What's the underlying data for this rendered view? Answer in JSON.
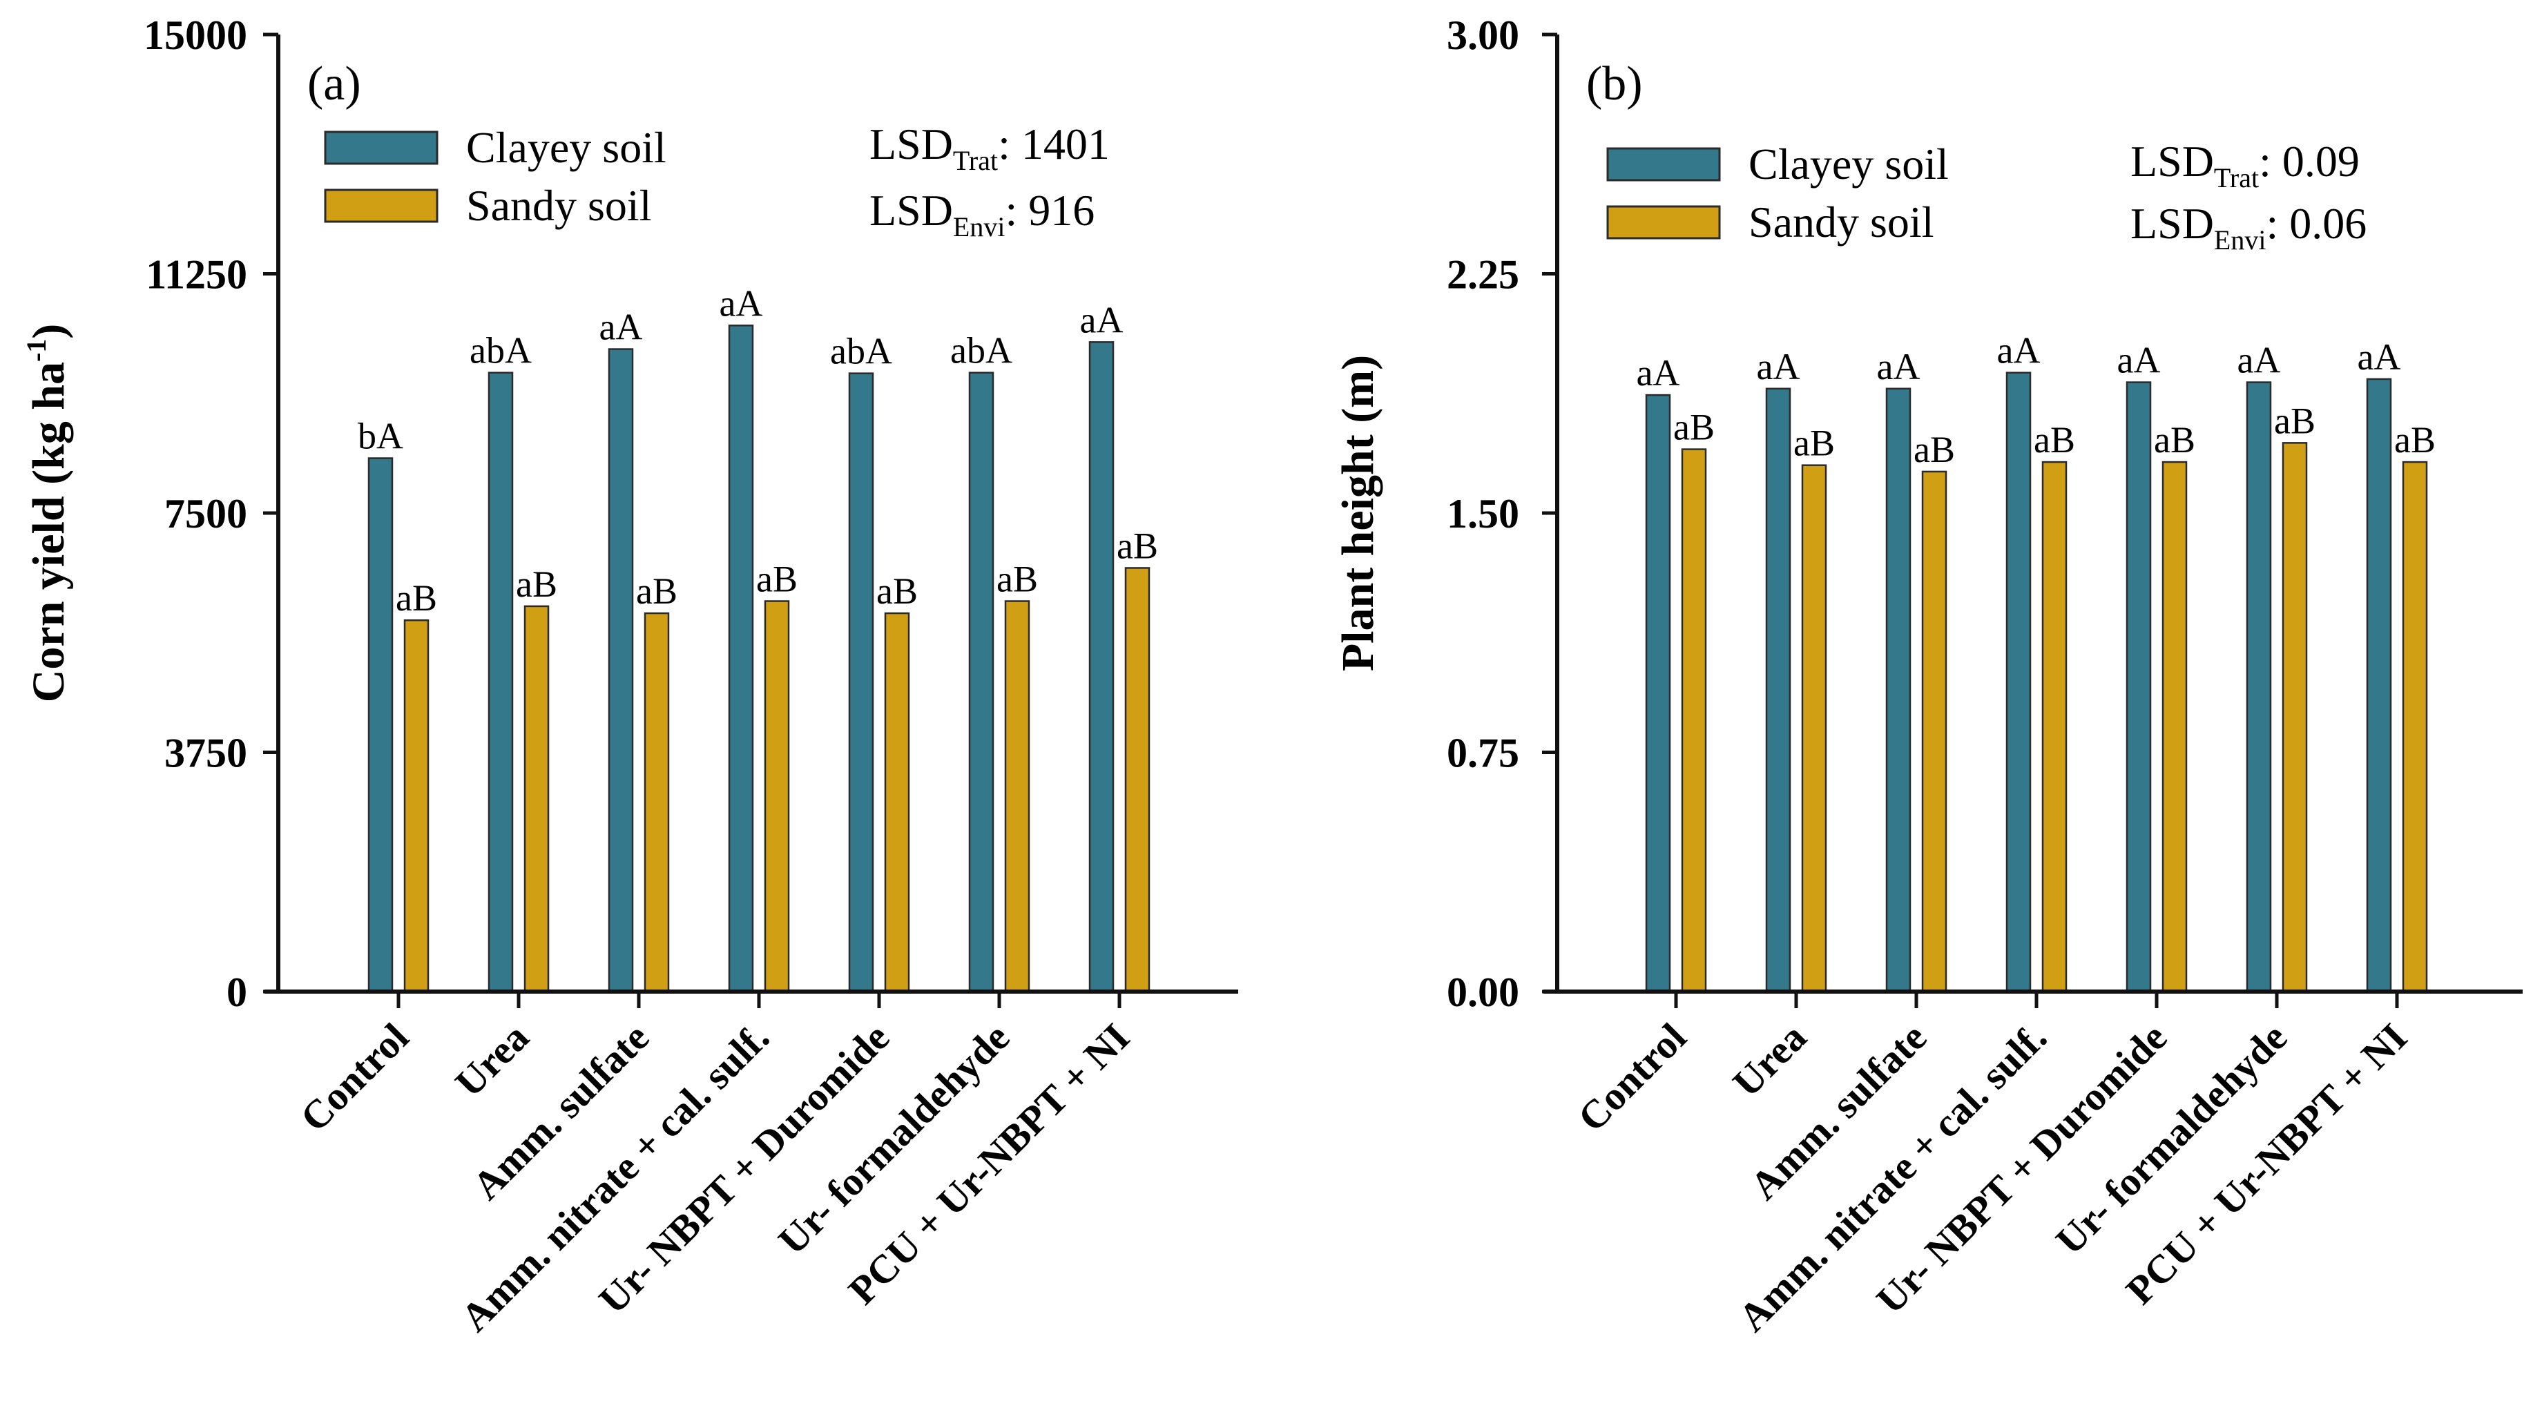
{
  "colors": {
    "clayey": "#34788B",
    "sandy": "#D19F14",
    "axis": "#111111"
  },
  "chart_data": [
    {
      "type": "bar",
      "panel_label": "(a)",
      "ylabel": "Corn yield (kg ha",
      "ylabel_sup": "-1",
      "ylabel_end": ")",
      "xlabel": "",
      "ylim": [
        0,
        15000
      ],
      "yticks": [
        "0",
        "3750",
        "7500",
        "11250",
        "15000"
      ],
      "ytick_values": [
        0,
        3750,
        7500,
        11250,
        15000
      ],
      "legend_placement": "top-left",
      "categories": [
        "Control",
        "Urea",
        "Amm. sulfate",
        "Amm. nitrate + cal. sulf.",
        "Ur- NBPT + Duromide",
        "Ur- formaldehyde",
        "PCU + Ur-NBPT + NI"
      ],
      "series": [
        {
          "name": "Clayey soil",
          "values": [
            8360,
            9700,
            10070,
            10440,
            9690,
            9700,
            10180
          ],
          "labels": [
            "bA",
            "abA",
            "aA",
            "aA",
            "abA",
            "abA",
            "aA"
          ]
        },
        {
          "name": "Sandy soil",
          "values": [
            5820,
            6040,
            5930,
            6120,
            5930,
            6120,
            6640
          ],
          "labels": [
            "aB",
            "aB",
            "aB",
            "aB",
            "aB",
            "aB",
            "aB"
          ]
        }
      ],
      "lsd": [
        {
          "base": "LSD",
          "sub": "Trat",
          "value": ": 1401"
        },
        {
          "base": "LSD",
          "sub": "Envi",
          "value": ": 916"
        }
      ]
    },
    {
      "type": "bar",
      "panel_label": "(b)",
      "ylabel": "Plant height (m)",
      "ylabel_sup": "",
      "ylabel_end": "",
      "xlabel": "",
      "ylim": [
        0,
        3.0
      ],
      "yticks": [
        "0.00",
        "0.75",
        "1.50",
        "2.25",
        "3.00"
      ],
      "ytick_values": [
        0,
        0.75,
        1.5,
        2.25,
        3.0
      ],
      "legend_placement": "top-left",
      "categories": [
        "Control",
        "Urea",
        "Amm. sulfate",
        "Amm. nitrate + cal. sulf.",
        "Ur- NBPT + Duromide",
        "Ur- formaldehyde",
        "PCU + Ur-NBPT + NI"
      ],
      "series": [
        {
          "name": "Clayey soil",
          "values": [
            1.87,
            1.89,
            1.89,
            1.94,
            1.91,
            1.91,
            1.92
          ],
          "labels": [
            "aA",
            "aA",
            "aA",
            "aA",
            "aA",
            "aA",
            "aA"
          ]
        },
        {
          "name": "Sandy soil",
          "values": [
            1.7,
            1.65,
            1.63,
            1.66,
            1.66,
            1.72,
            1.66
          ],
          "labels": [
            "aB",
            "aB",
            "aB",
            "aB",
            "aB",
            "aB",
            "aB"
          ]
        }
      ],
      "lsd": [
        {
          "base": "LSD",
          "sub": "Trat",
          "value": ":  0.09"
        },
        {
          "base": "LSD",
          "sub": "Envi",
          "value": ": 0.06"
        }
      ]
    }
  ]
}
